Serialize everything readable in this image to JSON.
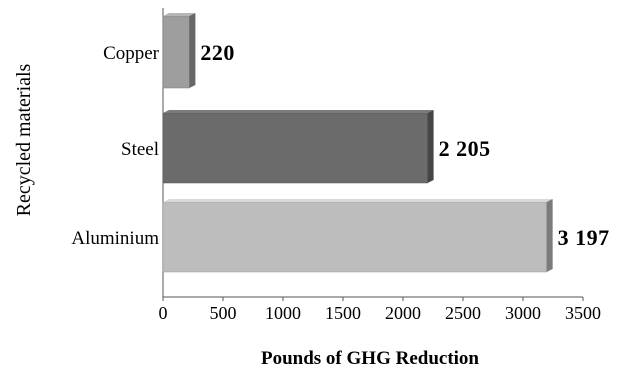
{
  "chart_data": {
    "type": "bar",
    "orientation": "horizontal",
    "categories": [
      "Copper",
      "Steel",
      "Aluminium"
    ],
    "values": [
      220,
      2205,
      3197
    ],
    "data_labels": [
      "220",
      "2 205",
      "3 197"
    ],
    "xlabel": "Pounds of GHG Reduction",
    "ylabel": "Recycled materials",
    "xlim": [
      0,
      3500
    ],
    "xticks": [
      0,
      500,
      1000,
      1500,
      2000,
      2500,
      3000,
      3500
    ],
    "grid": false,
    "legend": "none",
    "bar_colors": [
      "#9e9e9e",
      "#6b6b6b",
      "#bdbdbd"
    ]
  }
}
